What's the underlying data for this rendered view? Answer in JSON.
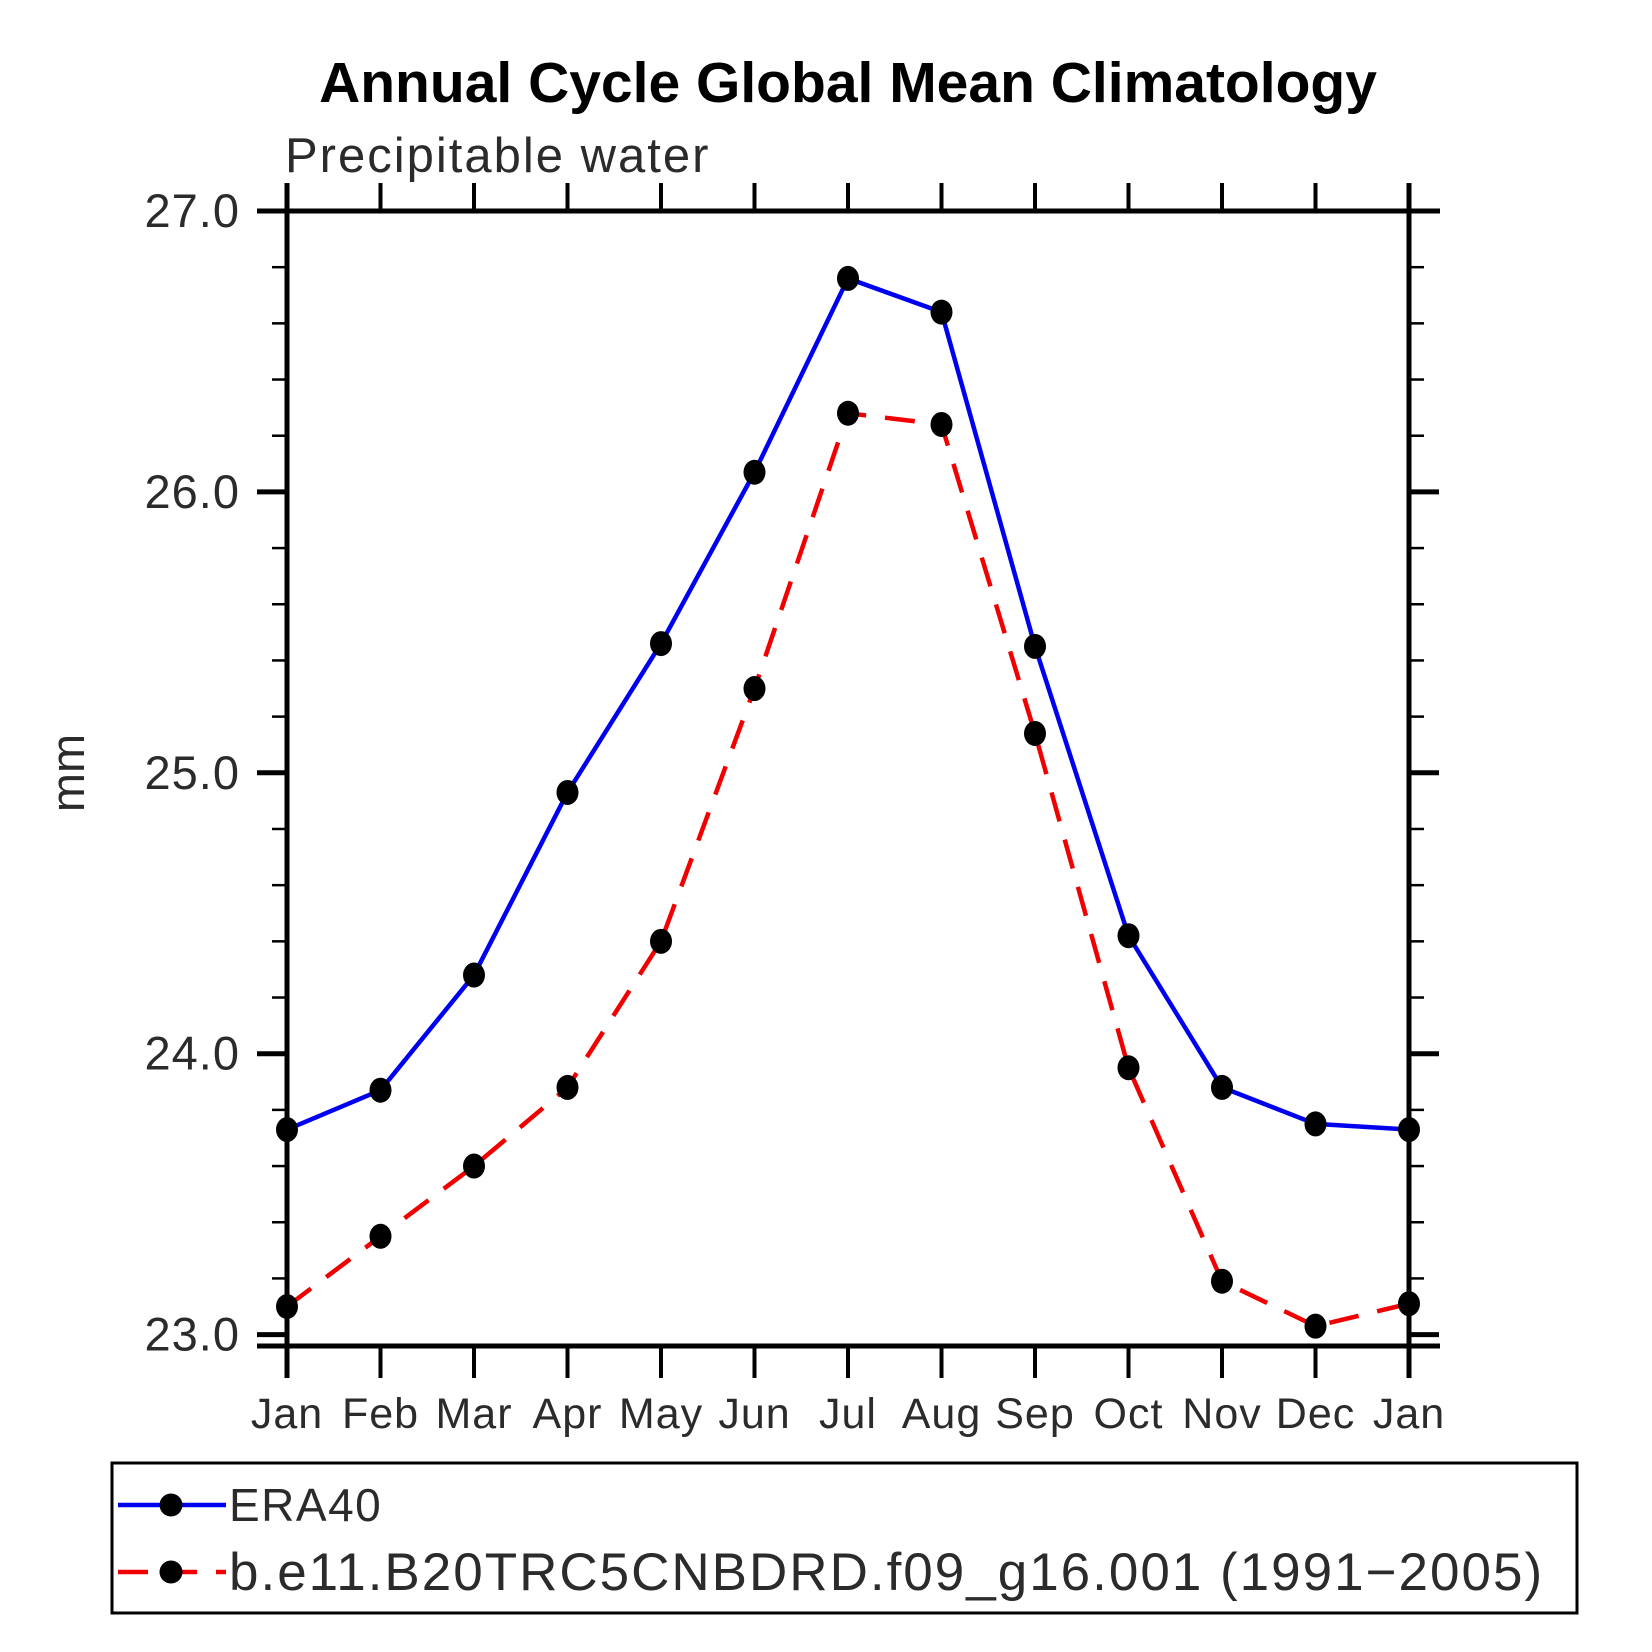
{
  "title": "Annual Cycle Global Mean Climatology",
  "subtitle": "Precipitable water",
  "y_axis": {
    "label": "mm",
    "tick_labels": [
      "27.0",
      "26.0",
      "25.0",
      "24.0",
      "23.0"
    ],
    "major_tick_values": [
      27.0,
      26.0,
      25.0,
      24.0,
      23.0
    ],
    "minor_tick_step": 0.2
  },
  "x_axis": {
    "tick_labels": [
      "Jan",
      "Feb",
      "Mar",
      "Apr",
      "May",
      "Jun",
      "Jul",
      "Aug",
      "Sep",
      "Oct",
      "Nov",
      "Dec",
      "Jan"
    ]
  },
  "legend": {
    "entries": [
      {
        "label": "ERA40",
        "color": "#0000f0",
        "style": "solid"
      },
      {
        "label": "b.e11.B20TRC5CNBDRD.f09_g16.001 (1991−2005)",
        "color": "#f00000",
        "style": "dashed"
      }
    ]
  },
  "colors": {
    "era40_line": "#0000f0",
    "model_line": "#f00000",
    "marker": "#000000",
    "axis": "#000000"
  },
  "chart_data": {
    "type": "line",
    "title": "Annual Cycle Global Mean Climatology",
    "subtitle": "Precipitable water",
    "ylabel": "mm",
    "categories": [
      "Jan",
      "Feb",
      "Mar",
      "Apr",
      "May",
      "Jun",
      "Jul",
      "Aug",
      "Sep",
      "Oct",
      "Nov",
      "Dec",
      "Jan"
    ],
    "series": [
      {
        "name": "ERA40",
        "color": "#0000f0",
        "line_style": "solid",
        "marker": "circle",
        "values": [
          23.73,
          23.87,
          24.28,
          24.93,
          25.46,
          26.07,
          26.76,
          26.64,
          25.45,
          24.42,
          23.88,
          23.75,
          23.73
        ]
      },
      {
        "name": "b.e11.B20TRC5CNBDRD.f09_g16.001 (1991−2005)",
        "color": "#f00000",
        "line_style": "dashed",
        "marker": "circle",
        "values": [
          23.1,
          23.35,
          23.6,
          23.88,
          24.4,
          25.3,
          26.28,
          26.24,
          25.14,
          23.95,
          23.19,
          23.03,
          23.11
        ]
      }
    ],
    "ylim": [
      22.96,
      27.0
    ],
    "yticks": [
      23.0,
      24.0,
      25.0,
      26.0,
      27.0
    ],
    "grid": false,
    "legend_position": "bottom"
  }
}
